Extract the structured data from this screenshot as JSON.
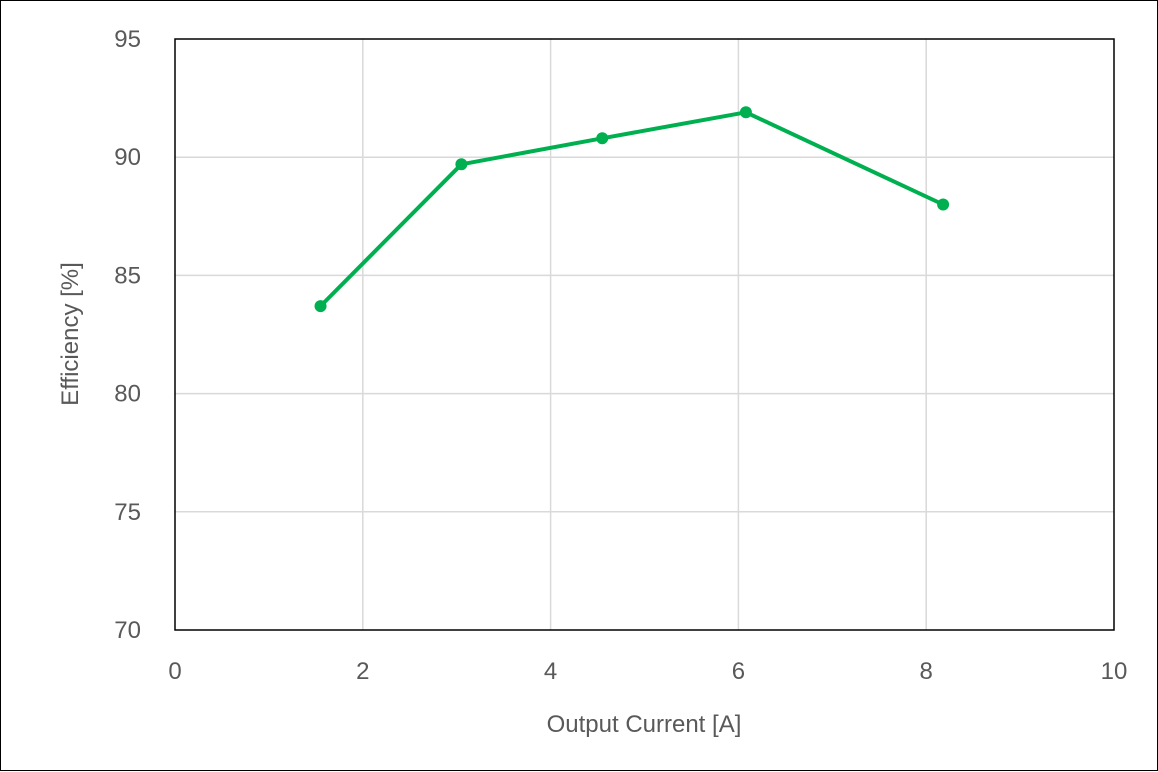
{
  "chart_data": {
    "type": "line",
    "title": "",
    "xlabel": "Output Current  [A]",
    "ylabel": "Efficiency  [%]",
    "xlim": [
      0,
      10
    ],
    "ylim": [
      70,
      95
    ],
    "xticks": [
      0,
      2,
      4,
      6,
      8,
      10
    ],
    "yticks": [
      70,
      75,
      80,
      85,
      90,
      95
    ],
    "grid": true,
    "legend": "none",
    "series": [
      {
        "color": "#00b050",
        "x": [
          1.55,
          3.05,
          4.55,
          6.08,
          8.18
        ],
        "y": [
          83.7,
          89.7,
          90.8,
          91.9,
          88.0
        ]
      }
    ]
  }
}
